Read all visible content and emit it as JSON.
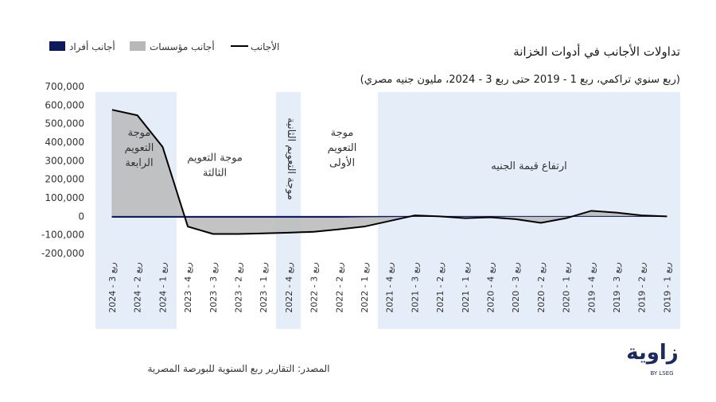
{
  "chart_data": {
    "type": "line",
    "title": "تداولات الأجانب في أدوات الخزانة",
    "subtitle": "(ربع سنوي تراكمي، ربع 1 - 2019 حتى ربع 3 - 2024،    مليون جنيه مصري)",
    "source": "المصدر:  التقارير ربع السنوية للبورصة المصرية",
    "logo": "زاوية",
    "logo_sub": "BY LSEG",
    "annotations": [
      "موجة التعويم الرابعة",
      "موجة التعويم الثالثة",
      "موجة التعويم الثانية",
      "موجة التعويم الأولى",
      "ارتفاع قيمة الجنيه"
    ],
    "categories": [
      "ربع 3 - 2024",
      "ربع 2 - 2024",
      "ربع 1 - 2024",
      "ربع 4 - 2023",
      "ربع 3 - 2023",
      "ربع 2 - 2023",
      "ربع 1 - 2023",
      "ربع 4 - 2022",
      "ربع 3 - 2022",
      "ربع 2 - 2022",
      "ربع 1 - 2022",
      "ربع 4 - 2021",
      "ربع 3 - 2021",
      "ربع 2 - 2021",
      "ربع 1 - 2021",
      "ربع 4 - 2020",
      "ربع 3 - 2020",
      "ربع 2 - 2020",
      "ربع 1 - 2020",
      "ربع 4 - 2019",
      "ربع 3 - 2019",
      "ربع 2 - 2019",
      "ربع 1 - 2019"
    ],
    "series": [
      {
        "name": "أجانب أفراد",
        "color": "#0d1a5c",
        "kind": "area",
        "values": [
          -5000,
          -5000,
          -5000,
          -5000,
          -5000,
          -5000,
          -5000,
          -5000,
          -5000,
          -5000,
          -3000,
          -2000,
          0,
          0,
          0,
          0,
          0,
          0,
          0,
          0,
          0,
          0,
          0
        ]
      },
      {
        "name": "أجانب مؤسسات",
        "color": "#b8b8b8",
        "kind": "area",
        "values": [
          570000,
          540000,
          370000,
          -50000,
          -90000,
          -90000,
          -88000,
          -83000,
          -78000,
          -68000,
          -53000,
          -25000,
          5000,
          0,
          -10000,
          -5000,
          -15000,
          -35000,
          -10000,
          30000,
          20000,
          5000,
          0
        ]
      },
      {
        "name": "الأجانب",
        "color": "#000000",
        "kind": "line",
        "values": [
          575000,
          545000,
          375000,
          -55000,
          -95000,
          -95000,
          -92000,
          -88000,
          -83000,
          -70000,
          -55000,
          -25000,
          5000,
          0,
          -10000,
          -5000,
          -15000,
          -35000,
          -10000,
          30000,
          20000,
          5000,
          0
        ]
      }
    ],
    "ylim": [
      -200000,
      700000
    ],
    "yticks": [
      {
        "value": -200000,
        "label": "-200,000"
      },
      {
        "value": -100000,
        "label": "-100,000"
      },
      0,
      {
        "value": 100000,
        "label": "100,000"
      },
      {
        "value": 200000,
        "label": "200,000"
      },
      {
        "value": 300000,
        "label": "300,000"
      },
      {
        "value": 400000,
        "label": "400,000"
      },
      {
        "value": 500000,
        "label": "500,000"
      },
      {
        "value": 600000,
        "label": "600,000"
      },
      {
        "value": 700000,
        "label": "700,000"
      }
    ]
  }
}
